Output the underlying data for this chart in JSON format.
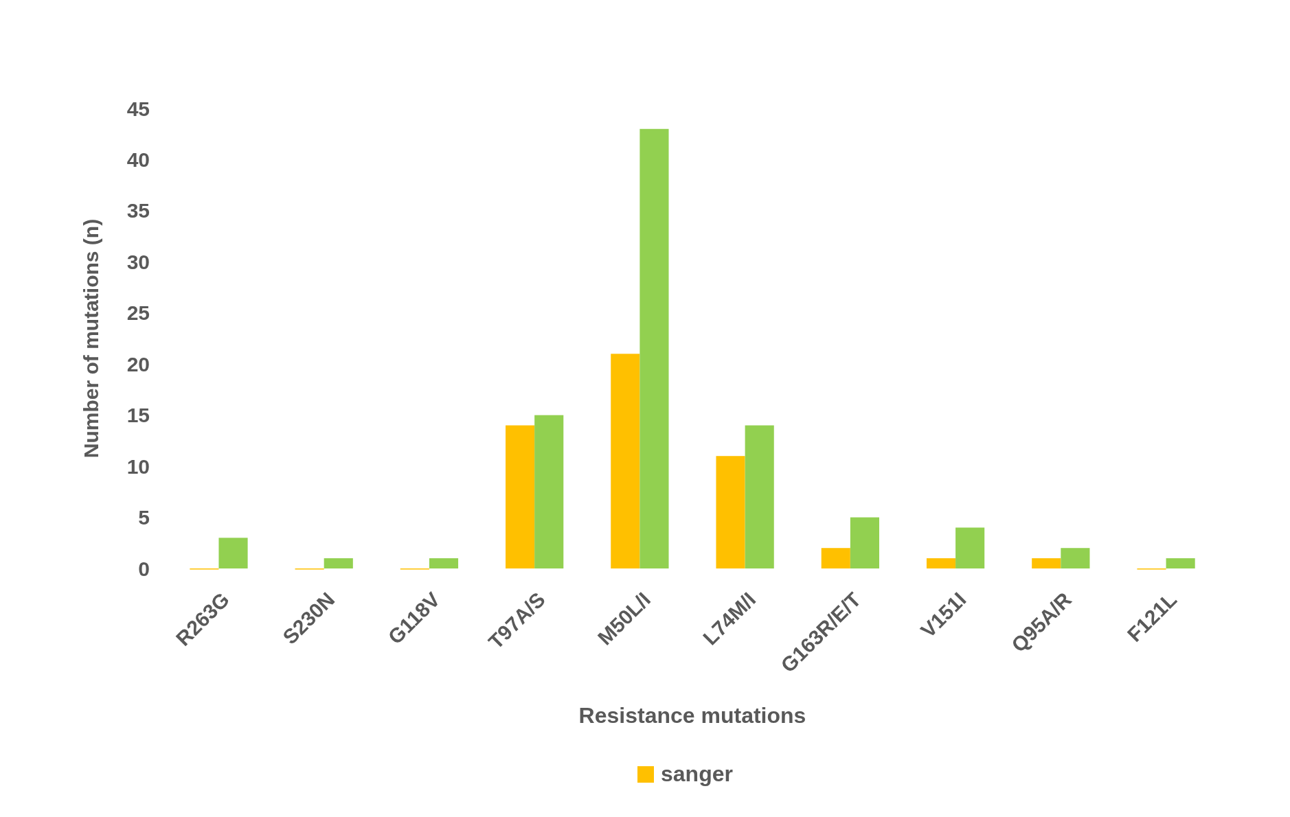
{
  "chart_data": {
    "type": "bar",
    "xlabel": "Resistance mutations",
    "ylabel": "Number of mutations (n)",
    "categories": [
      "R263G",
      "S230N",
      "G118V",
      "T97A/S",
      "M50L/I",
      "L74M/I",
      "G163R/E/T",
      "V151I",
      "Q95A/R",
      "F121L"
    ],
    "series": [
      {
        "name": "sanger",
        "color": "#ffc000",
        "values": [
          0,
          0,
          0,
          14,
          21,
          11,
          2,
          1,
          1,
          0
        ]
      },
      {
        "color": "#92d050",
        "values": [
          3,
          1,
          1,
          15,
          43,
          14,
          5,
          4,
          2,
          1
        ]
      }
    ],
    "ylim": [
      0,
      45
    ],
    "yticks": [
      0,
      5,
      10,
      15,
      20,
      25,
      30,
      35,
      40,
      45
    ],
    "grid": false,
    "legend": "bottom"
  }
}
